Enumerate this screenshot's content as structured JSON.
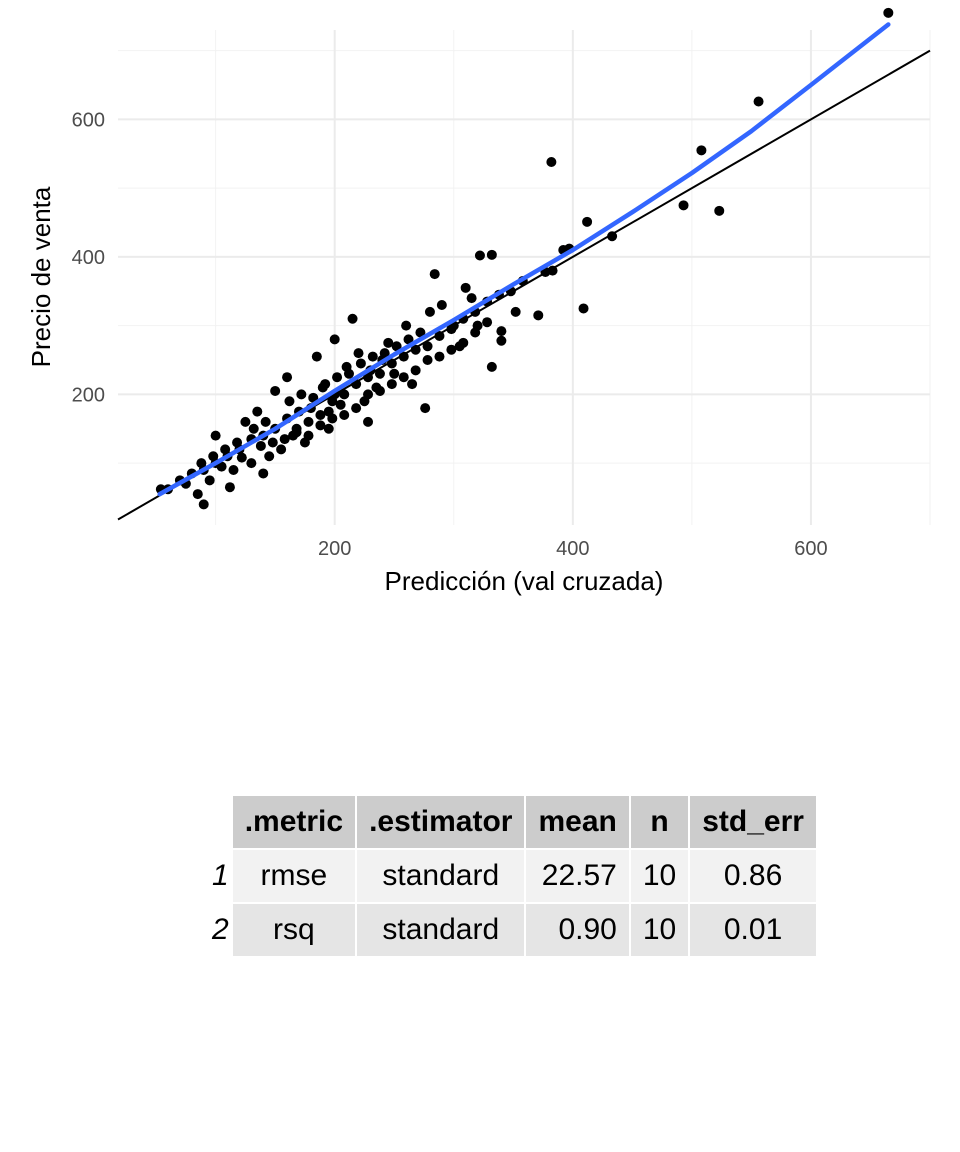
{
  "chart_data": {
    "type": "scatter",
    "xlabel": "Predicción (val cruzada)",
    "ylabel": "Precio de venta",
    "xlim": [
      18,
      700
    ],
    "ylim": [
      10,
      730
    ],
    "xticks": [
      200,
      400,
      600
    ],
    "yticks": [
      200,
      400,
      600
    ],
    "grid": true,
    "reference_line": {
      "name": "identidad",
      "slope": 1,
      "intercept": 0,
      "color": "#000000"
    },
    "smooth_line": {
      "color": "#3366FF",
      "x": [
        53,
        100,
        150,
        200,
        250,
        300,
        350,
        400,
        450,
        500,
        550,
        600,
        665
      ],
      "y": [
        55,
        100,
        150,
        205,
        258,
        308,
        360,
        410,
        465,
        522,
        583,
        650,
        738
      ]
    },
    "points": [
      [
        382,
        538
      ],
      [
        412,
        451
      ],
      [
        397,
        412
      ],
      [
        392,
        410
      ],
      [
        433,
        430
      ],
      [
        383,
        380
      ],
      [
        377,
        378
      ],
      [
        322,
        402
      ],
      [
        332,
        403
      ],
      [
        284,
        375
      ],
      [
        352,
        320
      ],
      [
        371,
        315
      ],
      [
        409,
        325
      ],
      [
        340,
        292
      ],
      [
        340,
        278
      ],
      [
        332,
        240
      ],
      [
        508,
        555
      ],
      [
        493,
        475
      ],
      [
        523,
        467
      ],
      [
        556,
        626
      ],
      [
        665,
        755
      ],
      [
        310,
        355
      ],
      [
        315,
        340
      ],
      [
        300,
        300
      ],
      [
        280,
        320
      ],
      [
        260,
        300
      ],
      [
        240,
        250
      ],
      [
        230,
        235
      ],
      [
        220,
        260
      ],
      [
        210,
        240
      ],
      [
        200,
        200
      ],
      [
        190,
        210
      ],
      [
        180,
        180
      ],
      [
        170,
        175
      ],
      [
        160,
        165
      ],
      [
        150,
        150
      ],
      [
        140,
        140
      ],
      [
        130,
        135
      ],
      [
        120,
        120
      ],
      [
        110,
        110
      ],
      [
        100,
        100
      ],
      [
        90,
        90
      ],
      [
        80,
        85
      ],
      [
        70,
        75
      ],
      [
        60,
        62
      ],
      [
        54,
        62
      ],
      [
        85,
        55
      ],
      [
        90,
        40
      ],
      [
        112,
        65
      ],
      [
        140,
        85
      ],
      [
        175,
        130
      ],
      [
        195,
        150
      ],
      [
        228,
        160
      ],
      [
        276,
        180
      ],
      [
        265,
        215
      ],
      [
        245,
        275
      ],
      [
        215,
        310
      ],
      [
        200,
        280
      ],
      [
        185,
        255
      ],
      [
        160,
        225
      ],
      [
        150,
        205
      ],
      [
        135,
        175
      ],
      [
        125,
        160
      ],
      [
        100,
        140
      ],
      [
        290,
        330
      ],
      [
        305,
        270
      ],
      [
        320,
        300
      ],
      [
        250,
        230
      ],
      [
        235,
        210
      ],
      [
        225,
        190
      ],
      [
        205,
        185
      ],
      [
        195,
        175
      ],
      [
        165,
        140
      ],
      [
        155,
        120
      ],
      [
        145,
        110
      ],
      [
        130,
        100
      ],
      [
        115,
        90
      ],
      [
        95,
        75
      ],
      [
        75,
        70
      ],
      [
        105,
        95
      ],
      [
        122,
        108
      ],
      [
        138,
        125
      ],
      [
        148,
        130
      ],
      [
        168,
        150
      ],
      [
        178,
        160
      ],
      [
        188,
        170
      ],
      [
        198,
        190
      ],
      [
        208,
        200
      ],
      [
        218,
        215
      ],
      [
        228,
        225
      ],
      [
        238,
        230
      ],
      [
        248,
        245
      ],
      [
        258,
        255
      ],
      [
        268,
        265
      ],
      [
        278,
        270
      ],
      [
        288,
        285
      ],
      [
        298,
        295
      ],
      [
        308,
        310
      ],
      [
        318,
        320
      ],
      [
        328,
        335
      ],
      [
        338,
        345
      ],
      [
        348,
        350
      ],
      [
        358,
        365
      ],
      [
        162,
        190
      ],
      [
        172,
        200
      ],
      [
        182,
        195
      ],
      [
        192,
        215
      ],
      [
        202,
        225
      ],
      [
        212,
        230
      ],
      [
        222,
        245
      ],
      [
        232,
        255
      ],
      [
        242,
        260
      ],
      [
        252,
        270
      ],
      [
        262,
        280
      ],
      [
        272,
        290
      ],
      [
        142,
        160
      ],
      [
        132,
        150
      ],
      [
        118,
        130
      ],
      [
        108,
        120
      ],
      [
        98,
        110
      ],
      [
        88,
        100
      ],
      [
        158,
        135
      ],
      [
        168,
        145
      ],
      [
        178,
        140
      ],
      [
        188,
        155
      ],
      [
        198,
        165
      ],
      [
        208,
        170
      ],
      [
        218,
        180
      ],
      [
        228,
        200
      ],
      [
        238,
        205
      ],
      [
        248,
        215
      ],
      [
        258,
        225
      ],
      [
        268,
        235
      ],
      [
        278,
        250
      ],
      [
        288,
        255
      ],
      [
        298,
        265
      ],
      [
        308,
        275
      ],
      [
        318,
        290
      ],
      [
        328,
        305
      ]
    ]
  },
  "table": {
    "columns": [
      ".metric",
      ".estimator",
      "mean",
      "n",
      "std_err"
    ],
    "rows": [
      {
        "rowname": "1",
        "metric": "rmse",
        "estimator": "standard",
        "mean": "22.57",
        "n": "10",
        "std_err": "0.86"
      },
      {
        "rowname": "2",
        "metric": "rsq",
        "estimator": "standard",
        "mean": "0.90",
        "n": "10",
        "std_err": "0.01"
      }
    ]
  }
}
